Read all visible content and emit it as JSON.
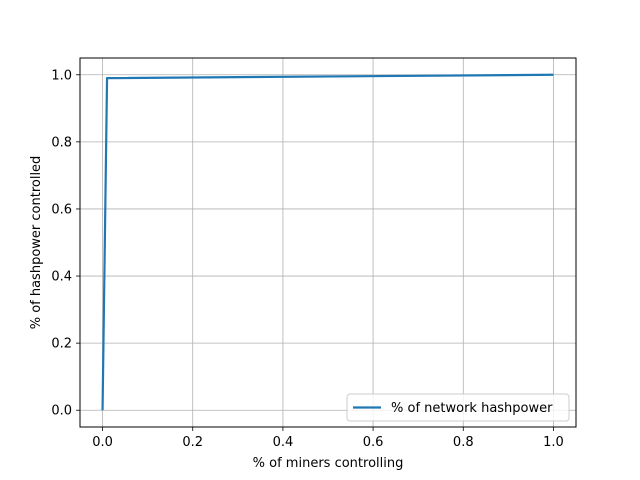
{
  "chart_data": {
    "type": "line",
    "xlabel": "% of miners controlling",
    "ylabel": "% of hashpower controlled",
    "xlim": [
      -0.05,
      1.05
    ],
    "ylim": [
      -0.05,
      1.05
    ],
    "grid": true,
    "legend": {
      "position": "lower right"
    },
    "x_ticks": [
      0.0,
      0.2,
      0.4,
      0.6,
      0.8,
      1.0
    ],
    "y_ticks": [
      0.0,
      0.2,
      0.4,
      0.6,
      0.8,
      1.0
    ],
    "x_tick_labels": [
      "0.0",
      "0.2",
      "0.4",
      "0.6",
      "0.8",
      "1.0"
    ],
    "y_tick_labels": [
      "0.0",
      "0.2",
      "0.4",
      "0.6",
      "0.8",
      "1.0"
    ],
    "series": [
      {
        "name": "% of network hashpower",
        "color": "#1f77b4",
        "points": [
          [
            0.0,
            0.0
          ],
          [
            0.01,
            0.99
          ],
          [
            1.0,
            1.0
          ]
        ]
      }
    ]
  }
}
